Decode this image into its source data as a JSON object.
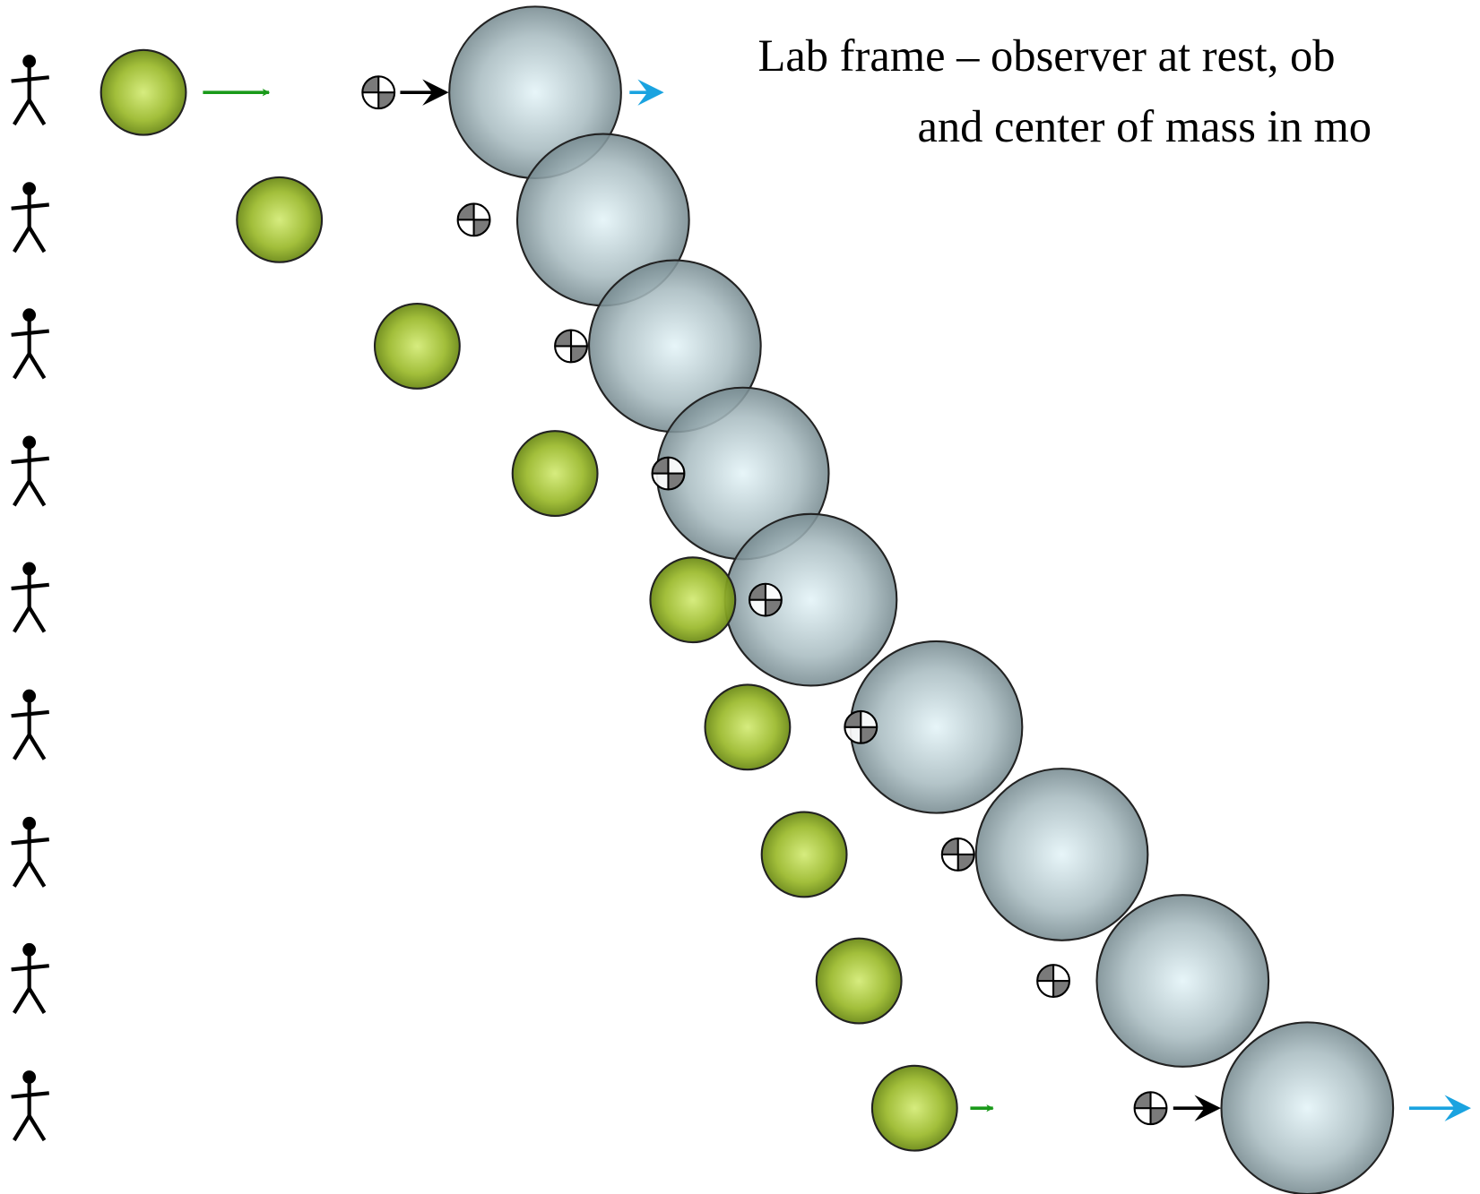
{
  "title": {
    "line1": "Lab frame – observer at rest, ob",
    "line2": "and center of mass in mo"
  }
}
